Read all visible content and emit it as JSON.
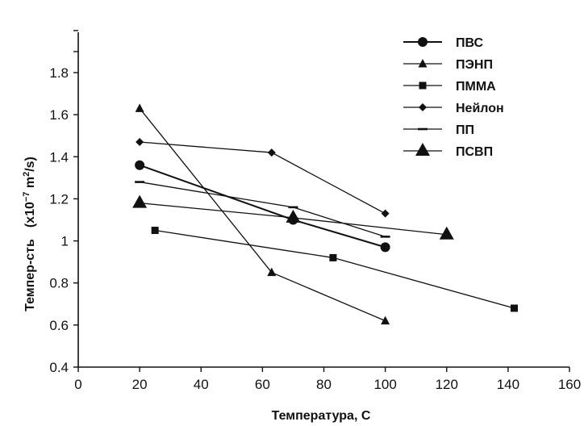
{
  "chart_data": {
    "type": "line",
    "xlabel": "Температура, C",
    "ylabel_main": "Темпер-сть",
    "ylabel_unit_prefix": "(x10",
    "ylabel_unit_exp": "−7",
    "ylabel_unit_mid": " m",
    "ylabel_unit_exp2": "2",
    "ylabel_unit_suffix": "/s)",
    "xlim": [
      0,
      160
    ],
    "ylim": [
      0.4,
      2.0
    ],
    "x_ticks": [
      0,
      20,
      40,
      60,
      80,
      100,
      120,
      140,
      160
    ],
    "x_tick_labels": [
      "0",
      "20",
      "40",
      "60",
      "80",
      "100",
      "120",
      "140",
      "160"
    ],
    "y_ticks": [
      0.4,
      0.6,
      0.8,
      1.0,
      1.2,
      1.4,
      1.6,
      1.8
    ],
    "y_tick_labels": [
      "0.4",
      "0.6",
      "0.8",
      "1",
      "1.2",
      "1.4",
      "1.6",
      "1.8"
    ],
    "grid": false,
    "legend_position": "top-right",
    "series": [
      {
        "name": "ПВС",
        "marker": "circle",
        "x": [
          20,
          70,
          100
        ],
        "y": [
          1.36,
          1.1,
          0.97
        ]
      },
      {
        "name": "ПЭНП",
        "marker": "triangle",
        "x": [
          20,
          63,
          100
        ],
        "y": [
          1.63,
          0.85,
          0.62
        ]
      },
      {
        "name": "ПММА",
        "marker": "square",
        "x": [
          25,
          83,
          142
        ],
        "y": [
          1.05,
          0.92,
          0.68
        ]
      },
      {
        "name": "Нейлон",
        "marker": "diamond",
        "x": [
          20,
          63,
          100
        ],
        "y": [
          1.47,
          1.42,
          1.13
        ]
      },
      {
        "name": "ПП",
        "marker": "dash",
        "x": [
          20,
          70,
          100
        ],
        "y": [
          1.28,
          1.16,
          1.02
        ]
      },
      {
        "name": "ПСВП",
        "marker": "triangle-large",
        "x": [
          20,
          70,
          120
        ],
        "y": [
          1.18,
          1.11,
          1.03
        ]
      }
    ]
  }
}
